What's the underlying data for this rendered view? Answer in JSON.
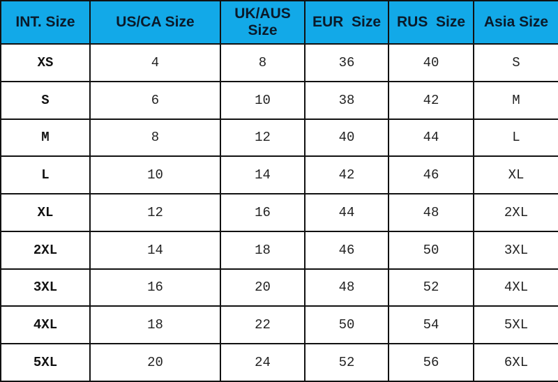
{
  "headers": [
    "INT. Size",
    "US/CA Size",
    "UK/AUS Size",
    "EUR  Size",
    "RUS  Size",
    "Asia Size"
  ],
  "header_color": "#12a9e8",
  "rows": [
    [
      "XS",
      "4",
      "8",
      "36",
      "40",
      "S"
    ],
    [
      "S",
      "6",
      "10",
      "38",
      "42",
      "M"
    ],
    [
      "M",
      "8",
      "12",
      "40",
      "44",
      "L"
    ],
    [
      "L",
      "10",
      "14",
      "42",
      "46",
      "XL"
    ],
    [
      "XL",
      "12",
      "16",
      "44",
      "48",
      "2XL"
    ],
    [
      "2XL",
      "14",
      "18",
      "46",
      "50",
      "3XL"
    ],
    [
      "3XL",
      "16",
      "20",
      "48",
      "52",
      "4XL"
    ],
    [
      "4XL",
      "18",
      "22",
      "50",
      "54",
      "5XL"
    ],
    [
      "5XL",
      "20",
      "24",
      "52",
      "56",
      "6XL"
    ]
  ]
}
